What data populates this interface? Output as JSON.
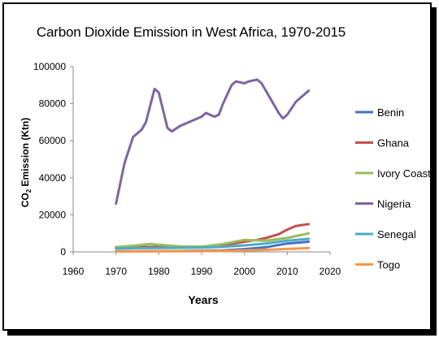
{
  "chart_data": {
    "type": "line",
    "title": "Carbon Dioxide  Emission  in West Africa, 1970-2015",
    "xlabel": "Years",
    "ylabel_main": "CO",
    "ylabel_sub": "2",
    "ylabel_rest": " Emission (Ktn)",
    "xlim": [
      1960,
      2020
    ],
    "ylim": [
      0,
      100000
    ],
    "x_ticks": [
      "1960",
      "1970",
      "1980",
      "1990",
      "2000",
      "2010",
      "2020"
    ],
    "y_ticks": [
      "0",
      "20000",
      "40000",
      "60000",
      "80000",
      "100000"
    ],
    "legend_position": "right",
    "grid": false,
    "series": [
      {
        "name": "Benin",
        "color": "#4472C4",
        "x": [
          1970,
          1975,
          1980,
          1985,
          1990,
          1995,
          2000,
          2005,
          2010,
          2015
        ],
        "y": [
          300,
          350,
          400,
          450,
          600,
          800,
          1500,
          2500,
          4500,
          5500
        ]
      },
      {
        "name": "Ghana",
        "color": "#C0504D",
        "x": [
          1970,
          1975,
          1980,
          1985,
          1990,
          1995,
          2000,
          2003,
          2005,
          2008,
          2010,
          2012,
          2015
        ],
        "y": [
          2300,
          2500,
          2700,
          2600,
          2800,
          3500,
          5500,
          6500,
          7500,
          9500,
          12000,
          14000,
          15000
        ]
      },
      {
        "name": "Ivory Coast",
        "color": "#9BBB59",
        "x": [
          1970,
          1975,
          1978,
          1980,
          1985,
          1990,
          1995,
          2000,
          2005,
          2010,
          2015
        ],
        "y": [
          2600,
          3500,
          4300,
          3800,
          3000,
          2800,
          4200,
          6500,
          6000,
          7500,
          10000
        ]
      },
      {
        "name": "Nigeria",
        "color": "#8064A2",
        "x": [
          1970,
          1972,
          1974,
          1976,
          1977,
          1979,
          1980,
          1982,
          1983,
          1985,
          1987,
          1990,
          1991,
          1993,
          1994,
          1995,
          1997,
          1998,
          2000,
          2001,
          2003,
          2004,
          2006,
          2008,
          2009,
          2010,
          2012,
          2015
        ],
        "y": [
          26000,
          48000,
          62000,
          66000,
          70000,
          88000,
          86000,
          67000,
          65000,
          68000,
          70000,
          73000,
          75000,
          73000,
          74000,
          80000,
          90000,
          92000,
          91000,
          92000,
          93000,
          91000,
          83000,
          75000,
          72000,
          74000,
          81000,
          87000
        ]
      },
      {
        "name": "Senegal",
        "color": "#4BACC6",
        "x": [
          1970,
          1975,
          1980,
          1985,
          1990,
          1995,
          2000,
          2005,
          2010,
          2015
        ],
        "y": [
          1800,
          2000,
          2100,
          2200,
          2300,
          2700,
          3500,
          4500,
          6000,
          7000
        ]
      },
      {
        "name": "Togo",
        "color": "#F79646",
        "x": [
          1970,
          1975,
          1980,
          1985,
          1990,
          1995,
          2000,
          2005,
          2010,
          2015
        ],
        "y": [
          200,
          250,
          300,
          350,
          400,
          500,
          800,
          1100,
          1600,
          2000
        ]
      }
    ]
  }
}
